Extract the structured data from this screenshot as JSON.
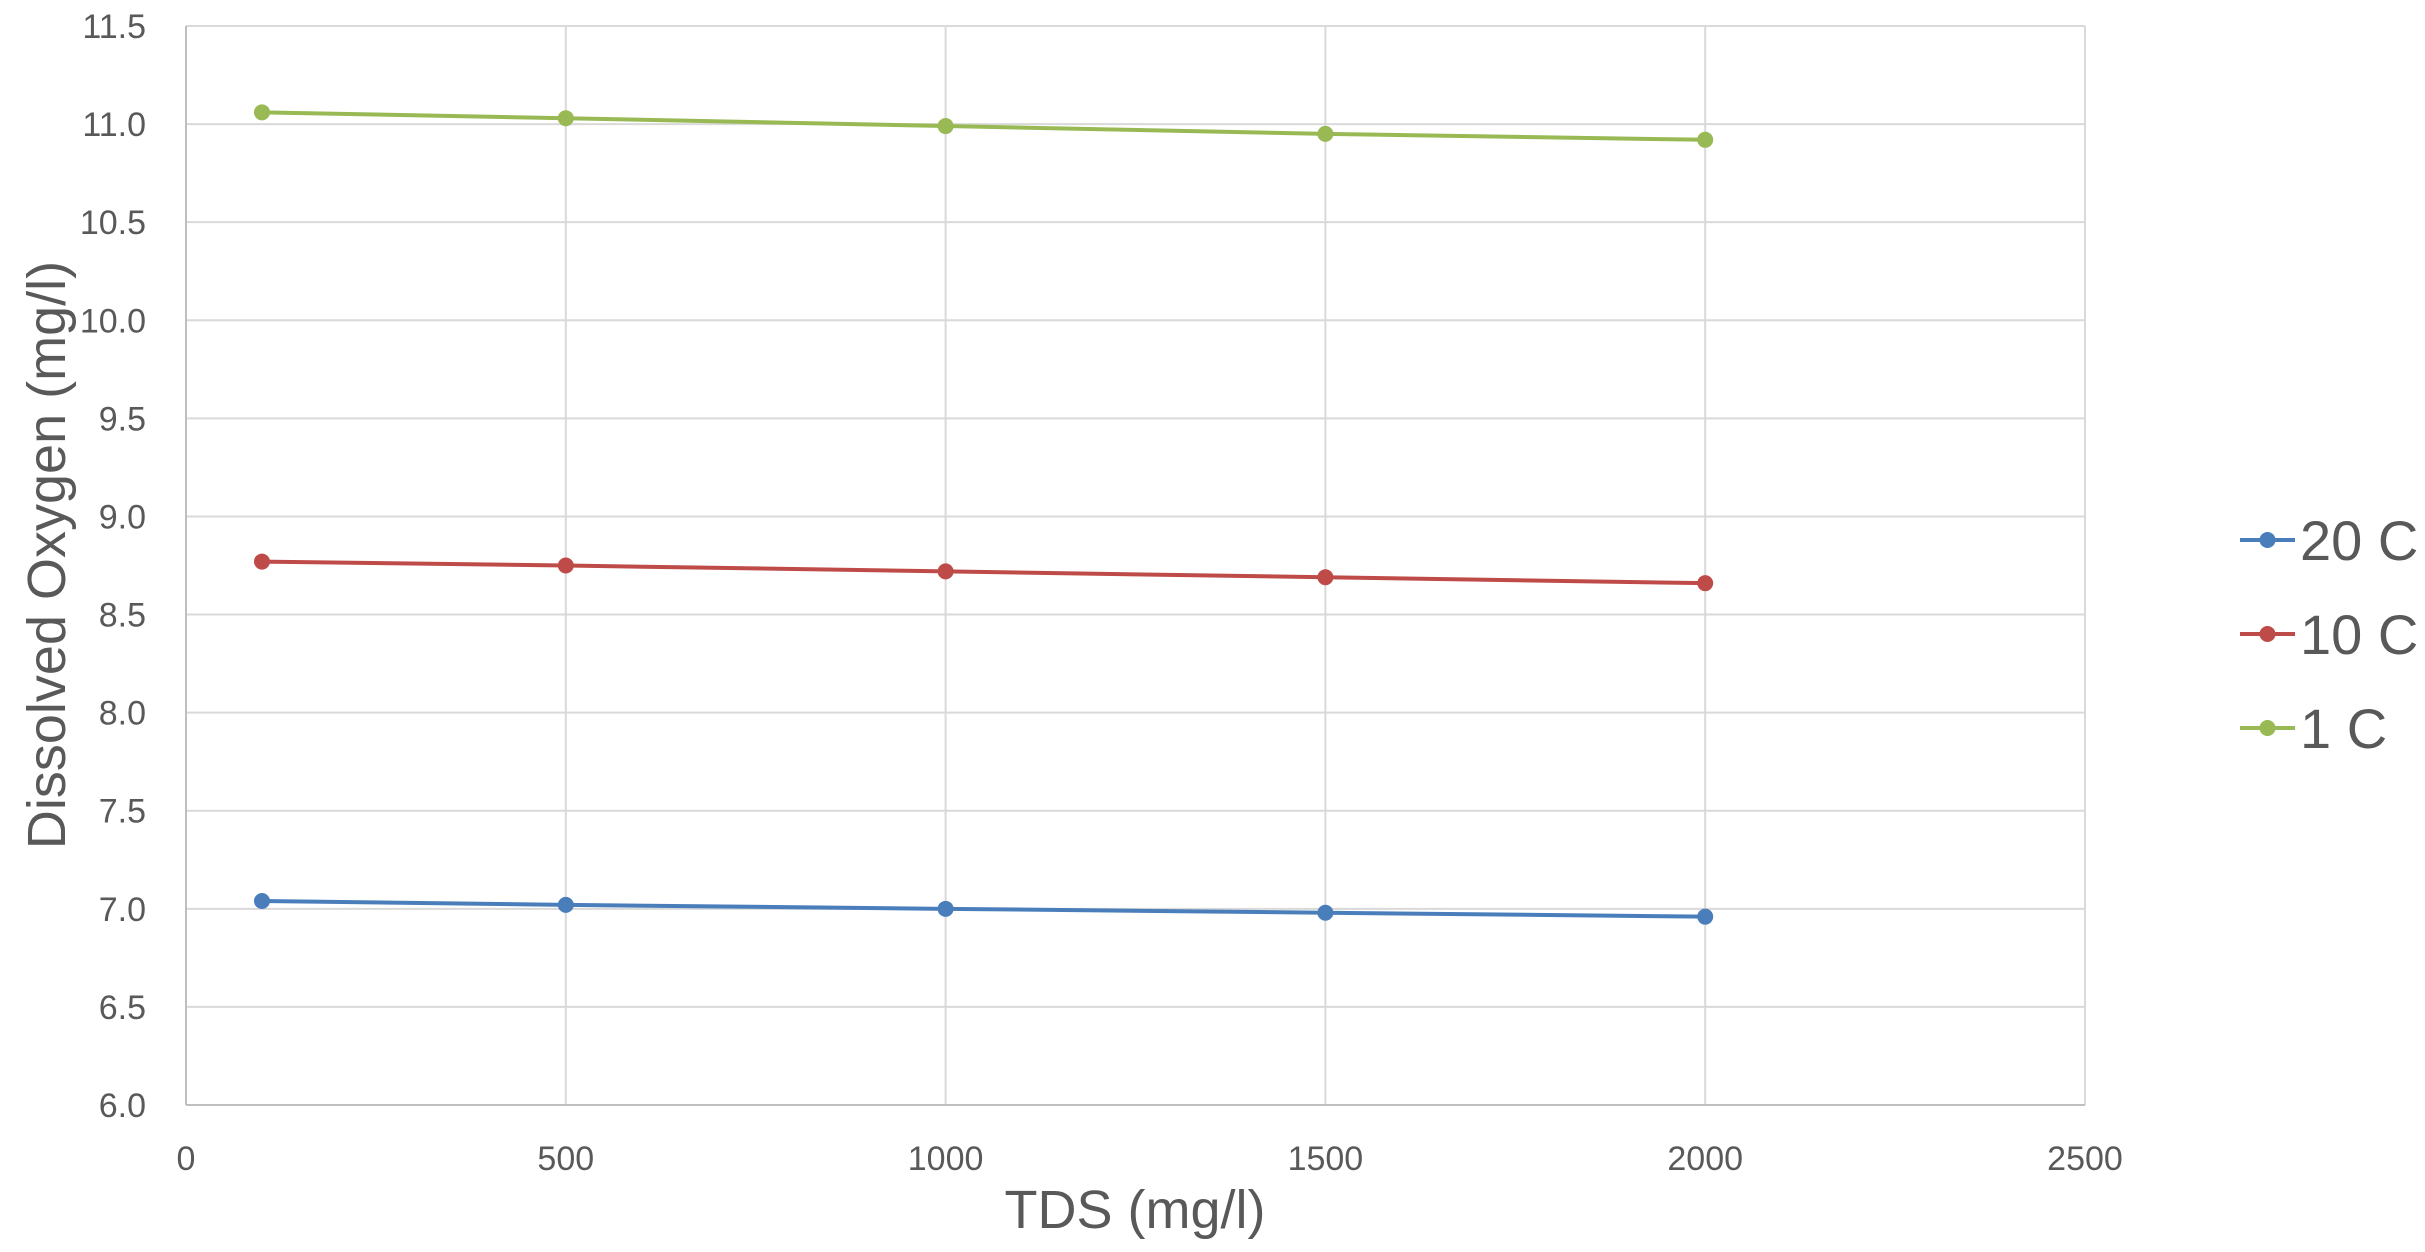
{
  "chart_data": {
    "type": "line",
    "title": "",
    "xlabel": "TDS (mg/l)",
    "ylabel": "Dissolved Oxygen (mg/l)",
    "xlim": [
      0,
      2500
    ],
    "ylim": [
      6.0,
      11.5
    ],
    "xticks": [
      "0",
      "500",
      "1000",
      "1500",
      "2000",
      "2500"
    ],
    "yticks": [
      "6.0",
      "6.5",
      "7.0",
      "7.5",
      "8.0",
      "8.5",
      "9.0",
      "9.5",
      "10.0",
      "10.5",
      "11.0",
      "11.5"
    ],
    "grid": true,
    "legend_position": "right",
    "x": [
      100,
      500,
      1000,
      1500,
      2000
    ],
    "series": [
      {
        "name": "20 C",
        "color": "#4a7ebb",
        "values": [
          7.04,
          7.02,
          7.0,
          6.98,
          6.96
        ]
      },
      {
        "name": "10 C",
        "color": "#be4b48",
        "values": [
          8.77,
          8.75,
          8.72,
          8.69,
          8.66
        ]
      },
      {
        "name": "1 C",
        "color": "#98b954",
        "values": [
          11.06,
          11.03,
          10.99,
          10.95,
          10.92
        ]
      }
    ]
  }
}
